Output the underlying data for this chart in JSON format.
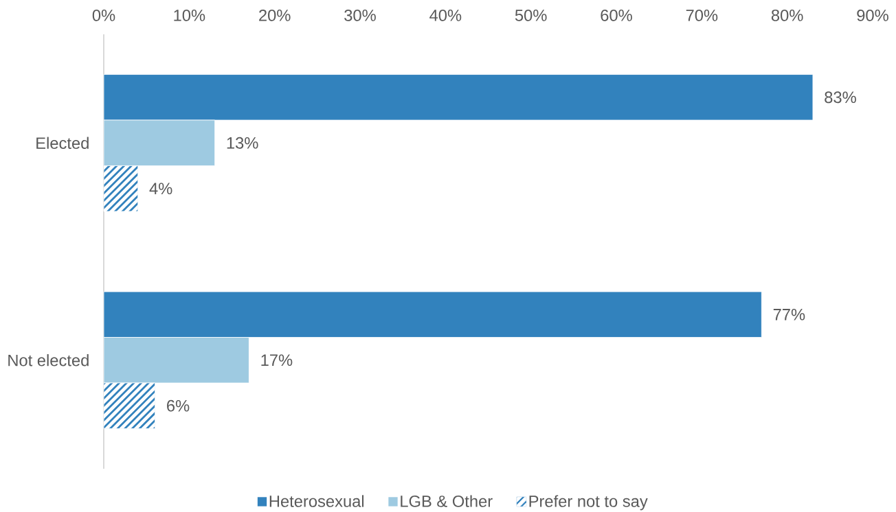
{
  "chart_data": {
    "type": "bar",
    "orientation": "horizontal",
    "categories": [
      "Elected",
      "Not elected"
    ],
    "series": [
      {
        "name": "Heterosexual",
        "color": "#3282bd",
        "values": [
          83,
          77
        ],
        "value_labels": [
          "83%",
          "77%"
        ]
      },
      {
        "name": "LGB & Other",
        "color": "#9ecae1",
        "values": [
          13,
          17
        ],
        "value_labels": [
          "13%",
          "17%"
        ]
      },
      {
        "name": "Prefer not to say",
        "color": "#3282bd",
        "values": [
          4,
          6
        ],
        "value_labels": [
          "4%",
          "6%"
        ]
      }
    ],
    "xlim": [
      0,
      90
    ],
    "xticks": [
      {
        "value": 0,
        "label": "0%"
      },
      {
        "value": 10,
        "label": "10%"
      },
      {
        "value": 20,
        "label": "20%"
      },
      {
        "value": 30,
        "label": "30%"
      },
      {
        "value": 40,
        "label": "40%"
      },
      {
        "value": 50,
        "label": "50%"
      },
      {
        "value": 60,
        "label": "60%"
      },
      {
        "value": 70,
        "label": "70%"
      },
      {
        "value": 80,
        "label": "80%"
      },
      {
        "value": 90,
        "label": "90%"
      }
    ],
    "legend": "bottom"
  }
}
